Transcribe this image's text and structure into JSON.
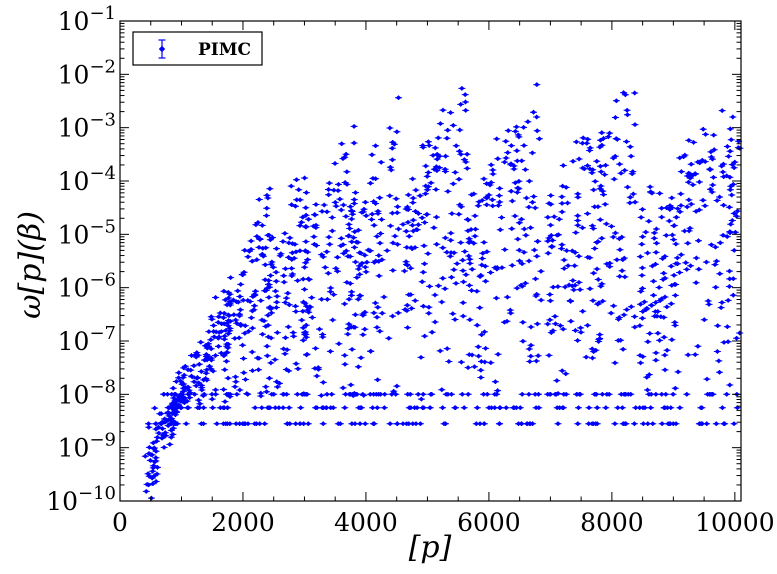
{
  "chart_data": {
    "type": "scatter",
    "xlabel": "[p]",
    "ylabel": "ω[p](β)",
    "xlim": [
      0,
      10100
    ],
    "ylim_log10": [
      -10,
      -1
    ],
    "y_scale": "log",
    "x_ticks": [
      0,
      2000,
      4000,
      6000,
      8000,
      10000
    ],
    "x_tick_labels": [
      "0",
      "2000",
      "4000",
      "6000",
      "8000",
      "10000"
    ],
    "y_tick_exponents": [
      -10,
      -9,
      -8,
      -7,
      -6,
      -5,
      -4,
      -3,
      -2,
      -1
    ],
    "y_tick_base": "10",
    "y_tick_labels": [
      "−10",
      "−9",
      "−8",
      "−7",
      "−6",
      "−5",
      "−4",
      "−3",
      "−2",
      "−1"
    ],
    "grid": false,
    "legend": {
      "position": "top-left",
      "entries": [
        "PIMC"
      ]
    },
    "marker_color": "#0000ff",
    "series": [
      {
        "name": "PIMC",
        "marker": "diamond-with-errorbars",
        "floor_levels_log10": [
          -8.55,
          -8.25,
          -8.0
        ],
        "bands": [
          {
            "x0": 400,
            "x1": 1050,
            "peak_x": 1050,
            "peak_log10": -7.45
          },
          {
            "x0": 850,
            "x1": 1800,
            "peak_x": 1800,
            "peak_log10": -5.6
          },
          {
            "x0": 1650,
            "x1": 2450,
            "peak_x": 2450,
            "peak_log10": -3.8
          },
          {
            "x0": 2350,
            "x1": 3050,
            "peak_x": 3000,
            "peak_log10": -3.1
          },
          {
            "x0": 2950,
            "x1": 3850,
            "peak_x": 3800,
            "peak_log10": -2.5
          },
          {
            "x0": 3750,
            "x1": 4550,
            "peak_x": 4550,
            "peak_log10": -2.1
          },
          {
            "x0": 4600,
            "x1": 5650,
            "peak_x": 5650,
            "peak_log10": -1.8
          },
          {
            "x0": 5650,
            "x1": 6850,
            "peak_x": 6850,
            "peak_log10": -1.65
          },
          {
            "x0": 6950,
            "x1": 8400,
            "peak_x": 8400,
            "peak_log10": -1.75
          },
          {
            "x0": 8450,
            "x1": 10100,
            "peak_x": 10100,
            "peak_log10": -1.95
          }
        ]
      }
    ]
  }
}
